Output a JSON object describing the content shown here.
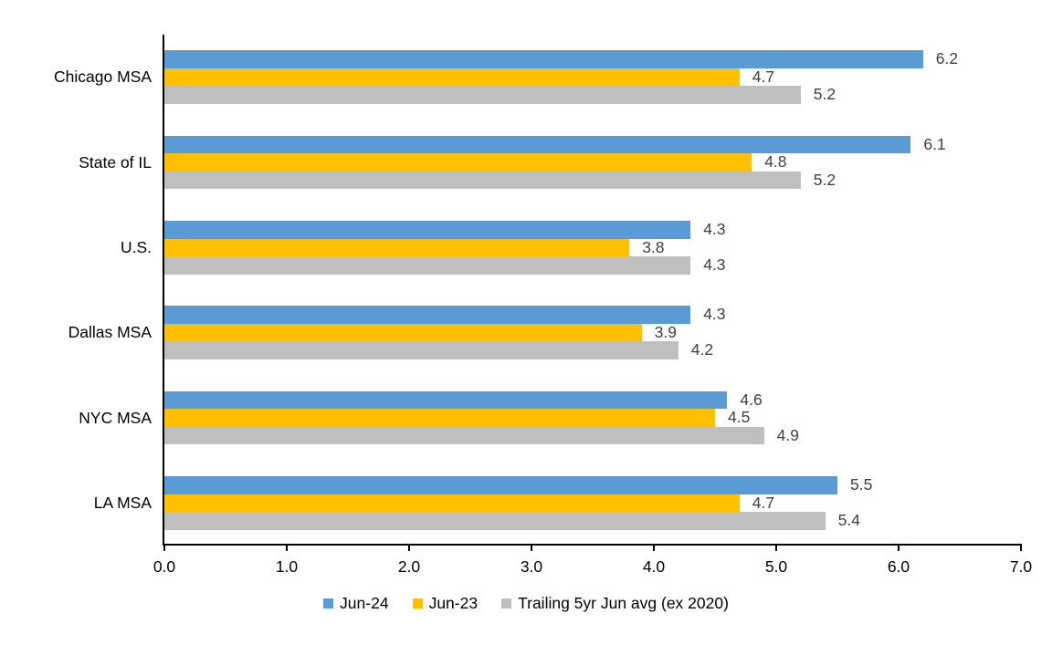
{
  "chart_data": {
    "type": "bar",
    "orientation": "horizontal",
    "title": "",
    "xlabel": "",
    "ylabel": "",
    "categories": [
      "Chicago MSA",
      "State of IL",
      "U.S.",
      "Dallas MSA",
      "NYC MSA",
      "LA MSA"
    ],
    "series": [
      {
        "name": "Jun-24",
        "color": "#5B9BD5",
        "values": [
          6.2,
          6.1,
          4.3,
          4.3,
          4.6,
          5.5
        ]
      },
      {
        "name": "Jun-23",
        "color": "#FFC000",
        "values": [
          4.7,
          4.8,
          3.8,
          3.9,
          4.5,
          4.7
        ]
      },
      {
        "name": "Trailing 5yr Jun avg (ex 2020)",
        "color": "#BFBFBF",
        "values": [
          5.2,
          5.2,
          4.3,
          4.2,
          4.9,
          5.4
        ]
      }
    ],
    "xlim": [
      0.0,
      7.0
    ],
    "x_ticks": [
      "0.0",
      "1.0",
      "2.0",
      "3.0",
      "4.0",
      "5.0",
      "6.0",
      "7.0"
    ],
    "grid": false,
    "legend_position": "bottom",
    "data_labels": true,
    "data_label_decimals": 1,
    "colors": {
      "data_label": "#404040",
      "axis": "#000000",
      "text": "#000000",
      "background": "#ffffff"
    }
  }
}
